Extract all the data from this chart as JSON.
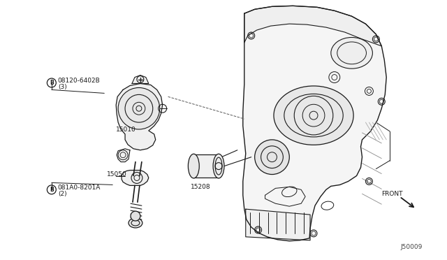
{
  "bg_color": "#ffffff",
  "line_color": "#1a1a1a",
  "fig_width": 6.4,
  "fig_height": 3.72,
  "dpi": 100,
  "diagram_id": "J50009",
  "labels": {
    "part1_code": "08120-6402B",
    "part1_qty": "(3)",
    "part2_label": "15010",
    "part3_label": "15050",
    "part4_code": "081A0-8201A",
    "part4_qty": "(2)",
    "part5_label": "15208",
    "front_label": "FRONT"
  }
}
